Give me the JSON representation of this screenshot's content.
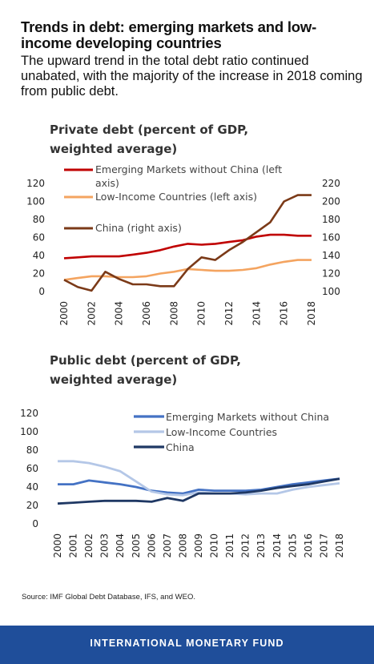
{
  "title": "Trends in debt: emerging markets and low-income developing countries",
  "subtitle": "The upward trend in the total debt ratio continued unabated, with the majority of the increase in 2018 coming from public debt.",
  "source": "Source: IMF Global Debt Database, IFS, and WEO.",
  "footer": "INTERNATIONAL MONETARY FUND",
  "colors": {
    "em": "#c00000",
    "lic": "#f4a460",
    "china_private": "#7b3a18",
    "em_public": "#4472c4",
    "lic_public": "#b4c7e7",
    "china_public": "#1f3864",
    "footer": "#1f4e9a"
  },
  "chart_data": [
    {
      "type": "line",
      "title": [
        "Private debt (percent of GDP,",
        "weighted average)"
      ],
      "x": [
        2000,
        2001,
        2002,
        2003,
        2004,
        2005,
        2006,
        2007,
        2008,
        2009,
        2010,
        2011,
        2012,
        2013,
        2014,
        2015,
        2016,
        2017,
        2018
      ],
      "xticks": [
        "2000",
        "2002",
        "2004",
        "2006",
        "2008",
        "2010",
        "2012",
        "2014",
        "2016",
        "2018"
      ],
      "ylim_left": [
        0,
        120
      ],
      "yticks_left": [
        "0",
        "20",
        "40",
        "60",
        "80",
        "100",
        "120"
      ],
      "ylim_right": [
        100,
        220
      ],
      "yticks_right": [
        "100",
        "120",
        "140",
        "160",
        "180",
        "200",
        "220"
      ],
      "series": [
        {
          "name": "Emerging Markets without China (left axis)",
          "legend_lines": [
            "Emerging Markets without China (left",
            "axis)"
          ],
          "axis": "left",
          "color": "#c00000",
          "values": [
            37,
            38,
            39,
            39,
            39,
            41,
            43,
            46,
            50,
            53,
            52,
            53,
            55,
            57,
            61,
            63,
            63,
            62,
            62
          ]
        },
        {
          "name": "Low-Income Countries (left axis)",
          "legend_lines": [
            "Low-Income Countries (left axis)"
          ],
          "axis": "left",
          "color": "#f4a460",
          "values": [
            13,
            15,
            17,
            17,
            16,
            16,
            17,
            20,
            22,
            25,
            24,
            23,
            23,
            24,
            26,
            30,
            33,
            35,
            35
          ]
        },
        {
          "name": "China (right axis)",
          "legend_lines": [
            "China (right axis)"
          ],
          "axis": "right",
          "color": "#7b3a18",
          "values": [
            113,
            105,
            101,
            122,
            114,
            108,
            108,
            106,
            106,
            125,
            138,
            135,
            146,
            155,
            166,
            177,
            200,
            207,
            207
          ]
        }
      ]
    },
    {
      "type": "line",
      "title": [
        "Public debt (percent of GDP,",
        "weighted average)"
      ],
      "x": [
        "2000",
        "2001",
        "2002",
        "2003",
        "2004",
        "2005",
        "2006",
        "2007",
        "2008",
        "2009",
        "2010",
        "2011",
        "2012",
        "2013",
        "2014",
        "2015",
        "2016",
        "2017",
        "2018"
      ],
      "ylim": [
        0,
        120
      ],
      "yticks": [
        "0",
        "20",
        "40",
        "60",
        "80",
        "100",
        "120"
      ],
      "series": [
        {
          "name": "Emerging Markets without China",
          "color": "#4472c4",
          "values": [
            43,
            43,
            47,
            45,
            43,
            40,
            36,
            34,
            33,
            37,
            36,
            36,
            36,
            37,
            40,
            43,
            45,
            47,
            49
          ]
        },
        {
          "name": "Low-Income Countries",
          "color": "#b4c7e7",
          "values": [
            68,
            68,
            66,
            62,
            57,
            46,
            35,
            32,
            31,
            34,
            33,
            33,
            32,
            33,
            33,
            37,
            40,
            42,
            44
          ]
        },
        {
          "name": "China",
          "color": "#1f3864",
          "values": [
            22,
            23,
            24,
            25,
            25,
            25,
            24,
            28,
            25,
            33,
            33,
            33,
            34,
            36,
            39,
            41,
            43,
            46,
            49
          ]
        }
      ]
    }
  ]
}
